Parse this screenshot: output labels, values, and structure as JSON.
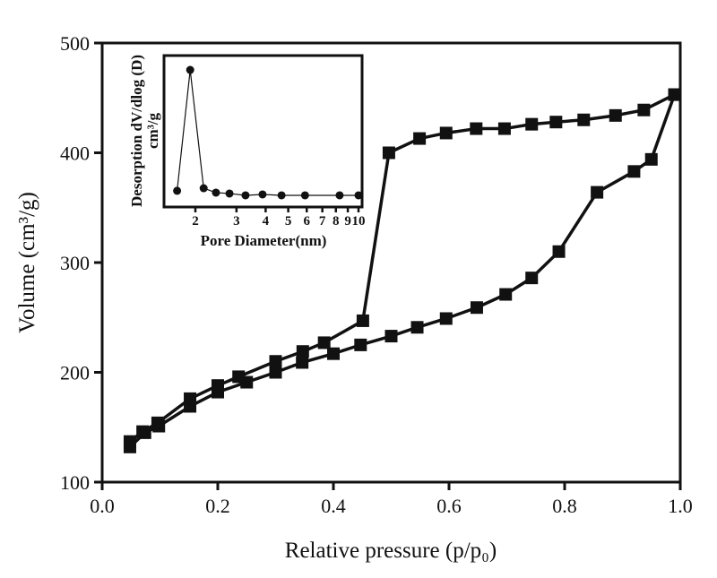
{
  "chart_data": [
    {
      "type": "line",
      "xlabel": "Relative pressure (p/p₀)",
      "ylabel": "Volume (cm³/g)",
      "xlim": [
        0.0,
        1.0
      ],
      "ylim": [
        100,
        500
      ],
      "xticks": [
        "0.0",
        "0.2",
        "0.4",
        "0.6",
        "0.8",
        "1.0"
      ],
      "yticks": [
        "100",
        "200",
        "300",
        "400",
        "500"
      ],
      "grid": false,
      "marker": "square",
      "color": "#111111",
      "series": [
        {
          "x": [
            0.048,
            0.074,
            0.098,
            0.152,
            0.2,
            0.25,
            0.3,
            0.346,
            0.4,
            0.447,
            0.5,
            0.545,
            0.595,
            0.648,
            0.698,
            0.743,
            0.79,
            0.856,
            0.92,
            0.95,
            0.99
          ],
          "y": [
            132,
            145,
            151,
            169,
            182,
            191,
            200,
            209,
            217,
            225,
            233,
            241,
            249,
            259,
            271,
            286,
            310,
            364,
            383,
            394,
            453
          ]
        },
        {
          "x": [
            0.99,
            0.937,
            0.888,
            0.833,
            0.785,
            0.743,
            0.696,
            0.647,
            0.595,
            0.549,
            0.496,
            0.451,
            0.384,
            0.347,
            0.3,
            0.236,
            0.2,
            0.152,
            0.096,
            0.07,
            0.048
          ],
          "y": [
            453,
            439,
            434,
            430,
            428,
            426,
            422,
            422,
            418,
            413,
            400,
            247,
            227,
            219,
            210,
            196,
            188,
            176,
            154,
            146,
            137
          ]
        }
      ]
    },
    {
      "type": "line",
      "xlabel": "Pore Diameter(nm)",
      "ylabel": [
        "Desorption dV/dlog (D)",
        "cm³/g"
      ],
      "xscale": "log",
      "xlim": [
        1.5,
        10
      ],
      "ylim": [
        0,
        1
      ],
      "xticks": [
        "2",
        "3",
        "4",
        "5",
        "6",
        "7",
        "8",
        "9",
        "10"
      ],
      "marker": "circle",
      "color": "#111111",
      "series": [
        {
          "x": [
            1.67,
            1.9,
            2.17,
            2.45,
            2.8,
            3.28,
            3.88,
            4.68,
            5.9,
            8.3,
            10
          ],
          "y": [
            0.107,
            0.905,
            0.124,
            0.095,
            0.089,
            0.077,
            0.083,
            0.077,
            0.077,
            0.077,
            0.077
          ]
        }
      ]
    }
  ]
}
